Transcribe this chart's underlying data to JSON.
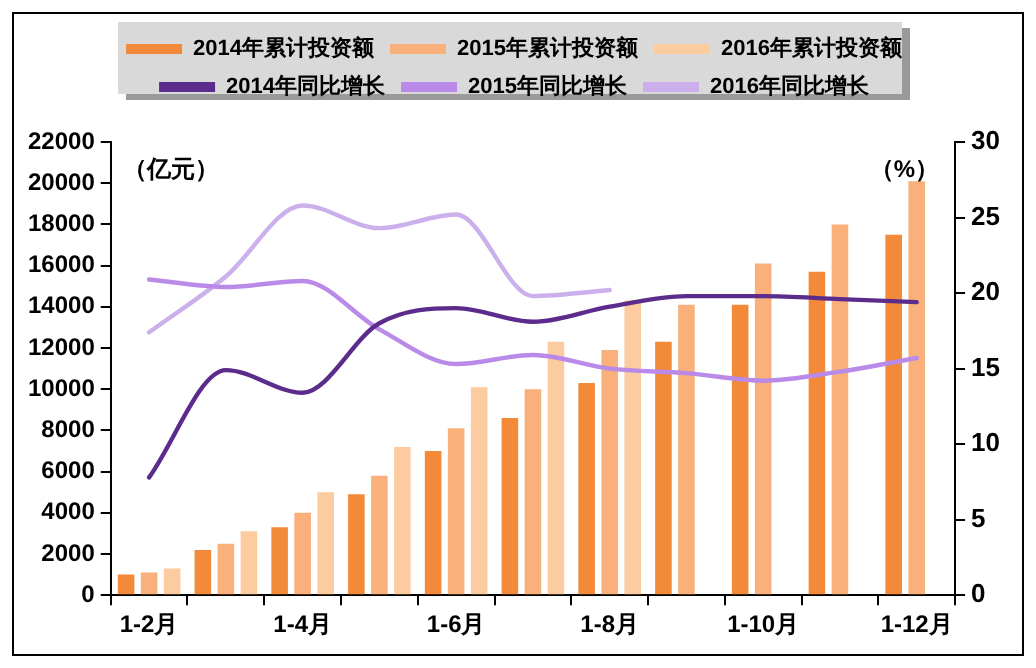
{
  "chart_data": {
    "type": "bar",
    "ylabel": "（亿元）",
    "y2label": "（%）",
    "categories": [
      "1-2月",
      null,
      "1-4月",
      null,
      "1-6月",
      null,
      "1-8月",
      null,
      "1-10月",
      null,
      "1-12月"
    ],
    "series": [
      {
        "name": "2014年累计投资额",
        "color": "#f28a3a",
        "values": [
          1000,
          2200,
          3300,
          4900,
          7000,
          8600,
          10300,
          12300,
          14100,
          15700,
          17500
        ]
      },
      {
        "name": "2015年累计投资额",
        "color": "#f9b07a",
        "values": [
          1100,
          2500,
          4000,
          5800,
          8100,
          10000,
          11900,
          14100,
          16100,
          18000,
          20100
        ]
      },
      {
        "name": "2016年累计投资额",
        "color": "#fccba0",
        "values": [
          1300,
          3100,
          5000,
          7200,
          10100,
          12300,
          14300,
          null,
          null,
          null,
          null
        ]
      },
      {
        "name": "2014年同比增长",
        "type": "line",
        "axis": "y2",
        "color": "#5b2c8c",
        "values": [
          7.8,
          14.9,
          13.4,
          18.0,
          19.0,
          18.1,
          19.1,
          19.8,
          19.8,
          19.6,
          19.4
        ]
      },
      {
        "name": "2015年同比增长",
        "type": "line",
        "axis": "y2",
        "color": "#b98ae8",
        "values": [
          20.9,
          20.4,
          20.8,
          17.6,
          15.3,
          15.9,
          15.0,
          14.7,
          14.2,
          14.8,
          15.7
        ]
      },
      {
        "name": "2016年同比增长",
        "type": "line",
        "axis": "y2",
        "color": "#cbb0ec",
        "values": [
          17.4,
          21.1,
          25.8,
          24.3,
          25.2,
          19.8,
          20.2,
          null,
          null,
          null,
          null
        ]
      }
    ],
    "ylim": [
      0,
      22000
    ],
    "yticks": [
      0,
      2000,
      4000,
      6000,
      8000,
      10000,
      12000,
      14000,
      16000,
      18000,
      20000,
      22000
    ],
    "y2lim": [
      0,
      30
    ],
    "y2ticks": [
      0,
      5,
      10,
      15,
      20,
      25,
      30
    ],
    "grid": false,
    "legend": "top",
    "marker": "none"
  }
}
